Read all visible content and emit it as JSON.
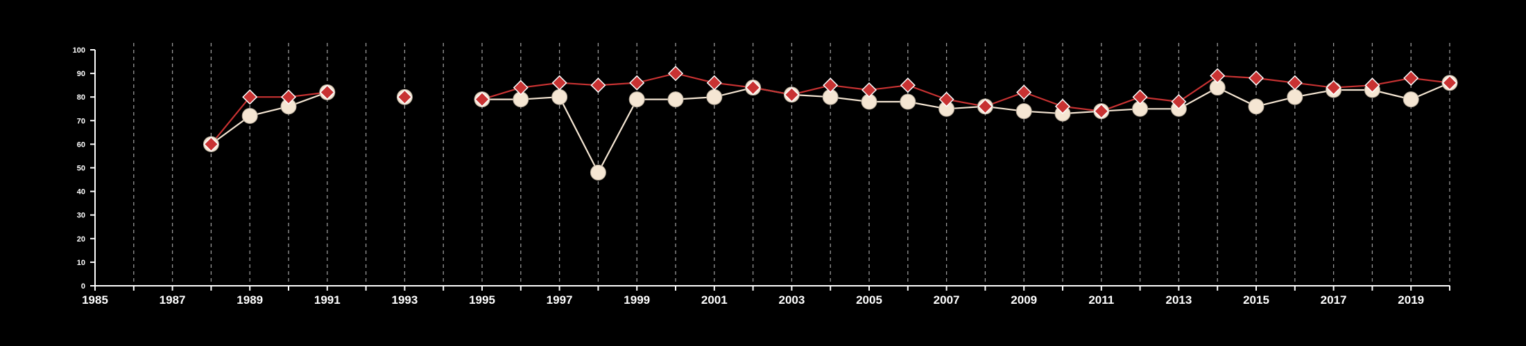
{
  "chart_data": {
    "type": "line",
    "title": "",
    "xlabel": "",
    "ylabel": "",
    "xlim": [
      1985,
      2020
    ],
    "ylim": [
      0,
      100
    ],
    "x_ticks": [
      1985,
      1987,
      1989,
      1991,
      1993,
      1995,
      1997,
      1999,
      2001,
      2003,
      2005,
      2007,
      2009,
      2011,
      2013,
      2015,
      2017,
      2019
    ],
    "x_tick_labels": [
      "1985",
      "1987",
      "1989",
      "1991",
      "1993",
      "1995",
      "1997",
      "1999",
      "2001",
      "2003",
      "2005",
      "2007",
      "2009",
      "2011",
      "2013",
      "2015",
      "2017",
      "2019"
    ],
    "y_ticks": [
      0,
      10,
      20,
      30,
      40,
      50,
      60,
      70,
      80,
      90,
      100
    ],
    "y_tick_labels": [
      "0",
      "10",
      "20",
      "30",
      "40",
      "50",
      "60",
      "70",
      "80",
      "90",
      "100"
    ],
    "grid": {
      "vertical": true,
      "horizontal": false,
      "style": "dashed"
    },
    "legend": "none",
    "series": [
      {
        "marker": "circle",
        "color": "#f5e6d3",
        "points": [
          [
            1988,
            60
          ],
          [
            1989,
            72
          ],
          [
            1990,
            76
          ],
          [
            1991,
            82
          ],
          [
            1993,
            80
          ],
          [
            1995,
            79
          ],
          [
            1996,
            79
          ],
          [
            1997,
            80
          ],
          [
            1998,
            48
          ],
          [
            1999,
            79
          ],
          [
            2000,
            79
          ],
          [
            2001,
            80
          ],
          [
            2002,
            84
          ],
          [
            2003,
            81
          ],
          [
            2004,
            80
          ],
          [
            2005,
            78
          ],
          [
            2006,
            78
          ],
          [
            2007,
            75
          ],
          [
            2008,
            76
          ],
          [
            2009,
            74
          ],
          [
            2010,
            73
          ],
          [
            2011,
            74
          ],
          [
            2012,
            75
          ],
          [
            2013,
            75
          ],
          [
            2014,
            84
          ],
          [
            2015,
            76
          ],
          [
            2016,
            80
          ],
          [
            2017,
            83
          ],
          [
            2018,
            83
          ],
          [
            2019,
            79
          ],
          [
            2020,
            86
          ]
        ]
      },
      {
        "marker": "diamond",
        "color": "#c83232",
        "points": [
          [
            1988,
            60
          ],
          [
            1989,
            80
          ],
          [
            1990,
            80
          ],
          [
            1991,
            82
          ],
          [
            1993,
            80
          ],
          [
            1995,
            79
          ],
          [
            1996,
            84
          ],
          [
            1997,
            86
          ],
          [
            1998,
            85
          ],
          [
            1999,
            86
          ],
          [
            2000,
            90
          ],
          [
            2001,
            86
          ],
          [
            2002,
            84
          ],
          [
            2003,
            81
          ],
          [
            2004,
            85
          ],
          [
            2005,
            83
          ],
          [
            2006,
            85
          ],
          [
            2007,
            79
          ],
          [
            2008,
            76
          ],
          [
            2009,
            82
          ],
          [
            2010,
            76
          ],
          [
            2011,
            74
          ],
          [
            2012,
            80
          ],
          [
            2013,
            78
          ],
          [
            2014,
            89
          ],
          [
            2015,
            88
          ],
          [
            2016,
            86
          ],
          [
            2017,
            84
          ],
          [
            2018,
            85
          ],
          [
            2019,
            88
          ],
          [
            2020,
            86
          ]
        ]
      }
    ]
  }
}
